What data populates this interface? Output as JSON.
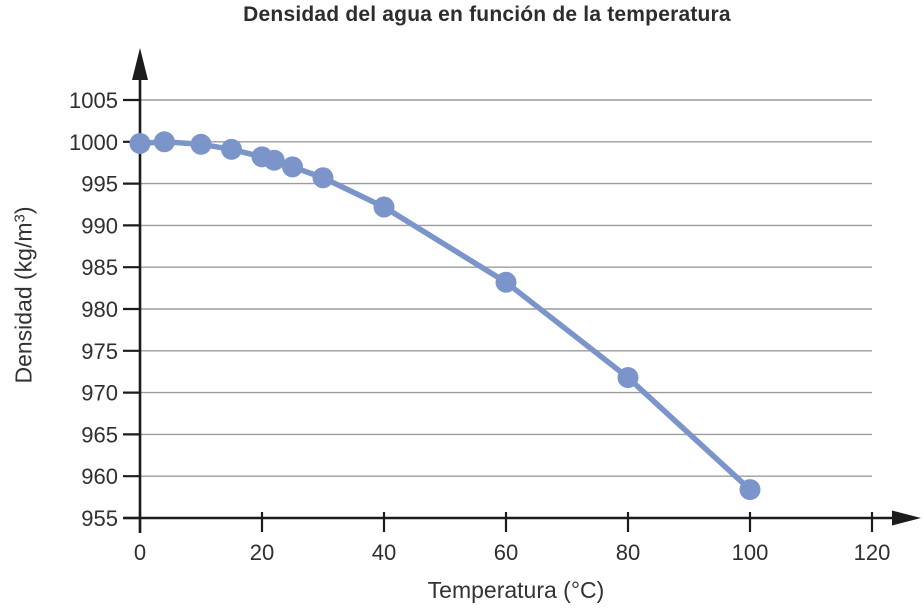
{
  "page": {
    "background": "#ffffff"
  },
  "chart_data": {
    "type": "line",
    "title": "Densidad del agua en función de la temperatura",
    "xlabel": "Temperatura (°C)",
    "ylabel": "Densidad (kg/m³)",
    "ylabel_parts": {
      "prefix": "Densidad (kg/m",
      "sup": "3",
      "suffix": ")"
    },
    "series": [
      {
        "x": [
          0,
          4,
          10,
          15,
          20,
          22,
          25,
          30,
          40,
          60,
          80,
          100
        ],
        "y": [
          999.8,
          1000.0,
          999.7,
          999.1,
          998.2,
          997.8,
          997.0,
          995.7,
          992.2,
          983.2,
          971.8,
          958.4
        ],
        "color": "#7b95cb",
        "marker": "circle"
      }
    ],
    "xlim": [
      0,
      120
    ],
    "ylim": [
      955,
      1005
    ],
    "xticks": [
      0,
      20,
      40,
      60,
      80,
      100,
      120
    ],
    "yticks": [
      955,
      960,
      965,
      970,
      975,
      980,
      985,
      990,
      995,
      1000,
      1005
    ],
    "grid": "horizontal",
    "legend": "none",
    "colors": {
      "gridline": "#9b9b9b",
      "axis": "#1c1c1c",
      "tick_text": "#2f2f2f"
    }
  }
}
